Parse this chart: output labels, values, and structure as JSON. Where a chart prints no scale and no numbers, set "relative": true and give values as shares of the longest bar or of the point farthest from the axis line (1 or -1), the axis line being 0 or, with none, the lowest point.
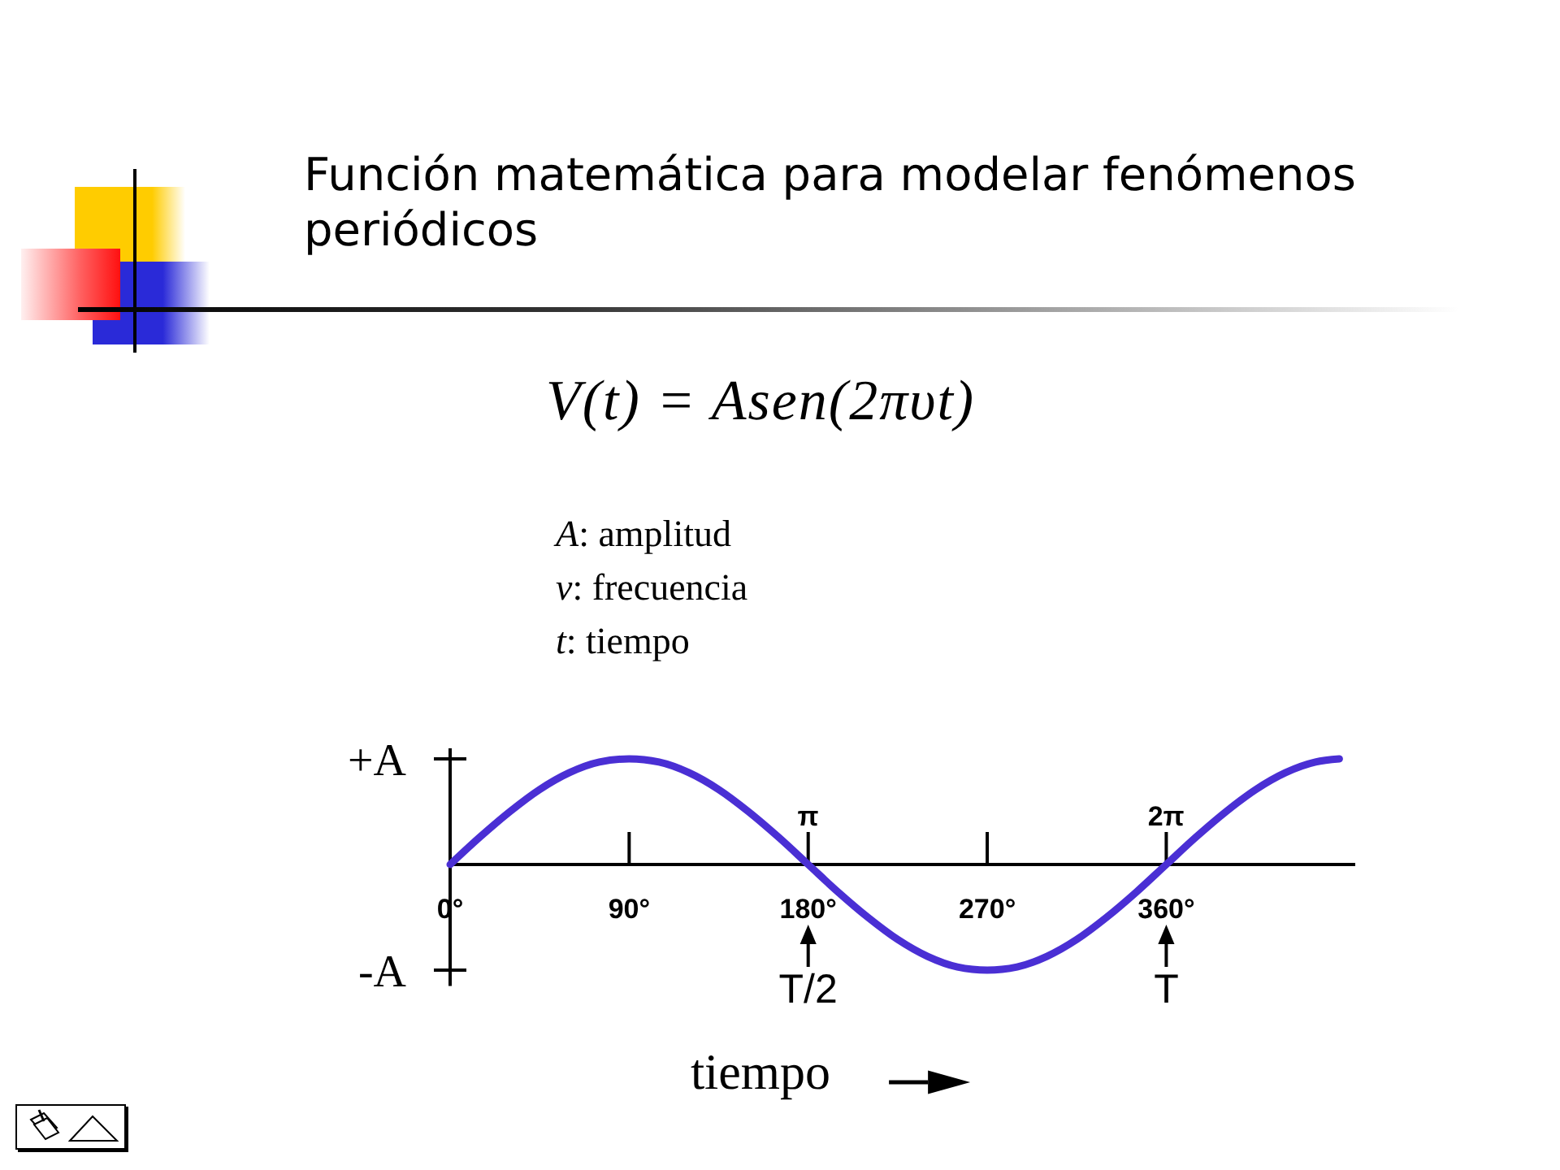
{
  "chart_data": {
    "type": "line",
    "title": "Función matemática para modelar fenómenos periódicos",
    "subtitle": "V(t) = Asen(2πυt)",
    "xlabel": "tiempo",
    "relative": true,
    "x": [
      0,
      15,
      30,
      45,
      60,
      75,
      90,
      105,
      120,
      135,
      150,
      165,
      180,
      195,
      210,
      225,
      240,
      255,
      270,
      285,
      300,
      315,
      330,
      345,
      360,
      375,
      390,
      405,
      420,
      435,
      447
    ],
    "series": [
      {
        "color": "#4a2fd4",
        "values": [
          0,
          0.26,
          0.5,
          0.71,
          0.87,
          0.97,
          1,
          0.97,
          0.87,
          0.71,
          0.5,
          0.26,
          0,
          -0.26,
          -0.5,
          -0.71,
          -0.87,
          -0.97,
          -1,
          -0.97,
          -0.87,
          -0.71,
          -0.5,
          -0.26,
          0,
          0.26,
          0.5,
          0.71,
          0.87,
          0.97,
          1
        ]
      }
    ],
    "xlim": [
      0,
      455
    ],
    "xticks": [
      {
        "value": 0,
        "label": "0°"
      },
      {
        "value": 90,
        "label": "90°"
      },
      {
        "value": 180,
        "label": "180°"
      },
      {
        "value": 270,
        "label": "270°"
      },
      {
        "value": 360,
        "label": "360°"
      }
    ],
    "x2lim": [
      0,
      7.94
    ],
    "x2ticks": [
      {
        "value": 3.14,
        "label": "π"
      },
      {
        "value": 6.28,
        "label": "2π"
      }
    ],
    "annotations": [
      "+A",
      "-A",
      "A: amplitud",
      "ν: frecuencia",
      "t: tiempo",
      {
        "text": "T/2",
        "x": 180,
        "y": 0
      },
      {
        "text": "T",
        "x": 360,
        "y": 0
      }
    ]
  }
}
